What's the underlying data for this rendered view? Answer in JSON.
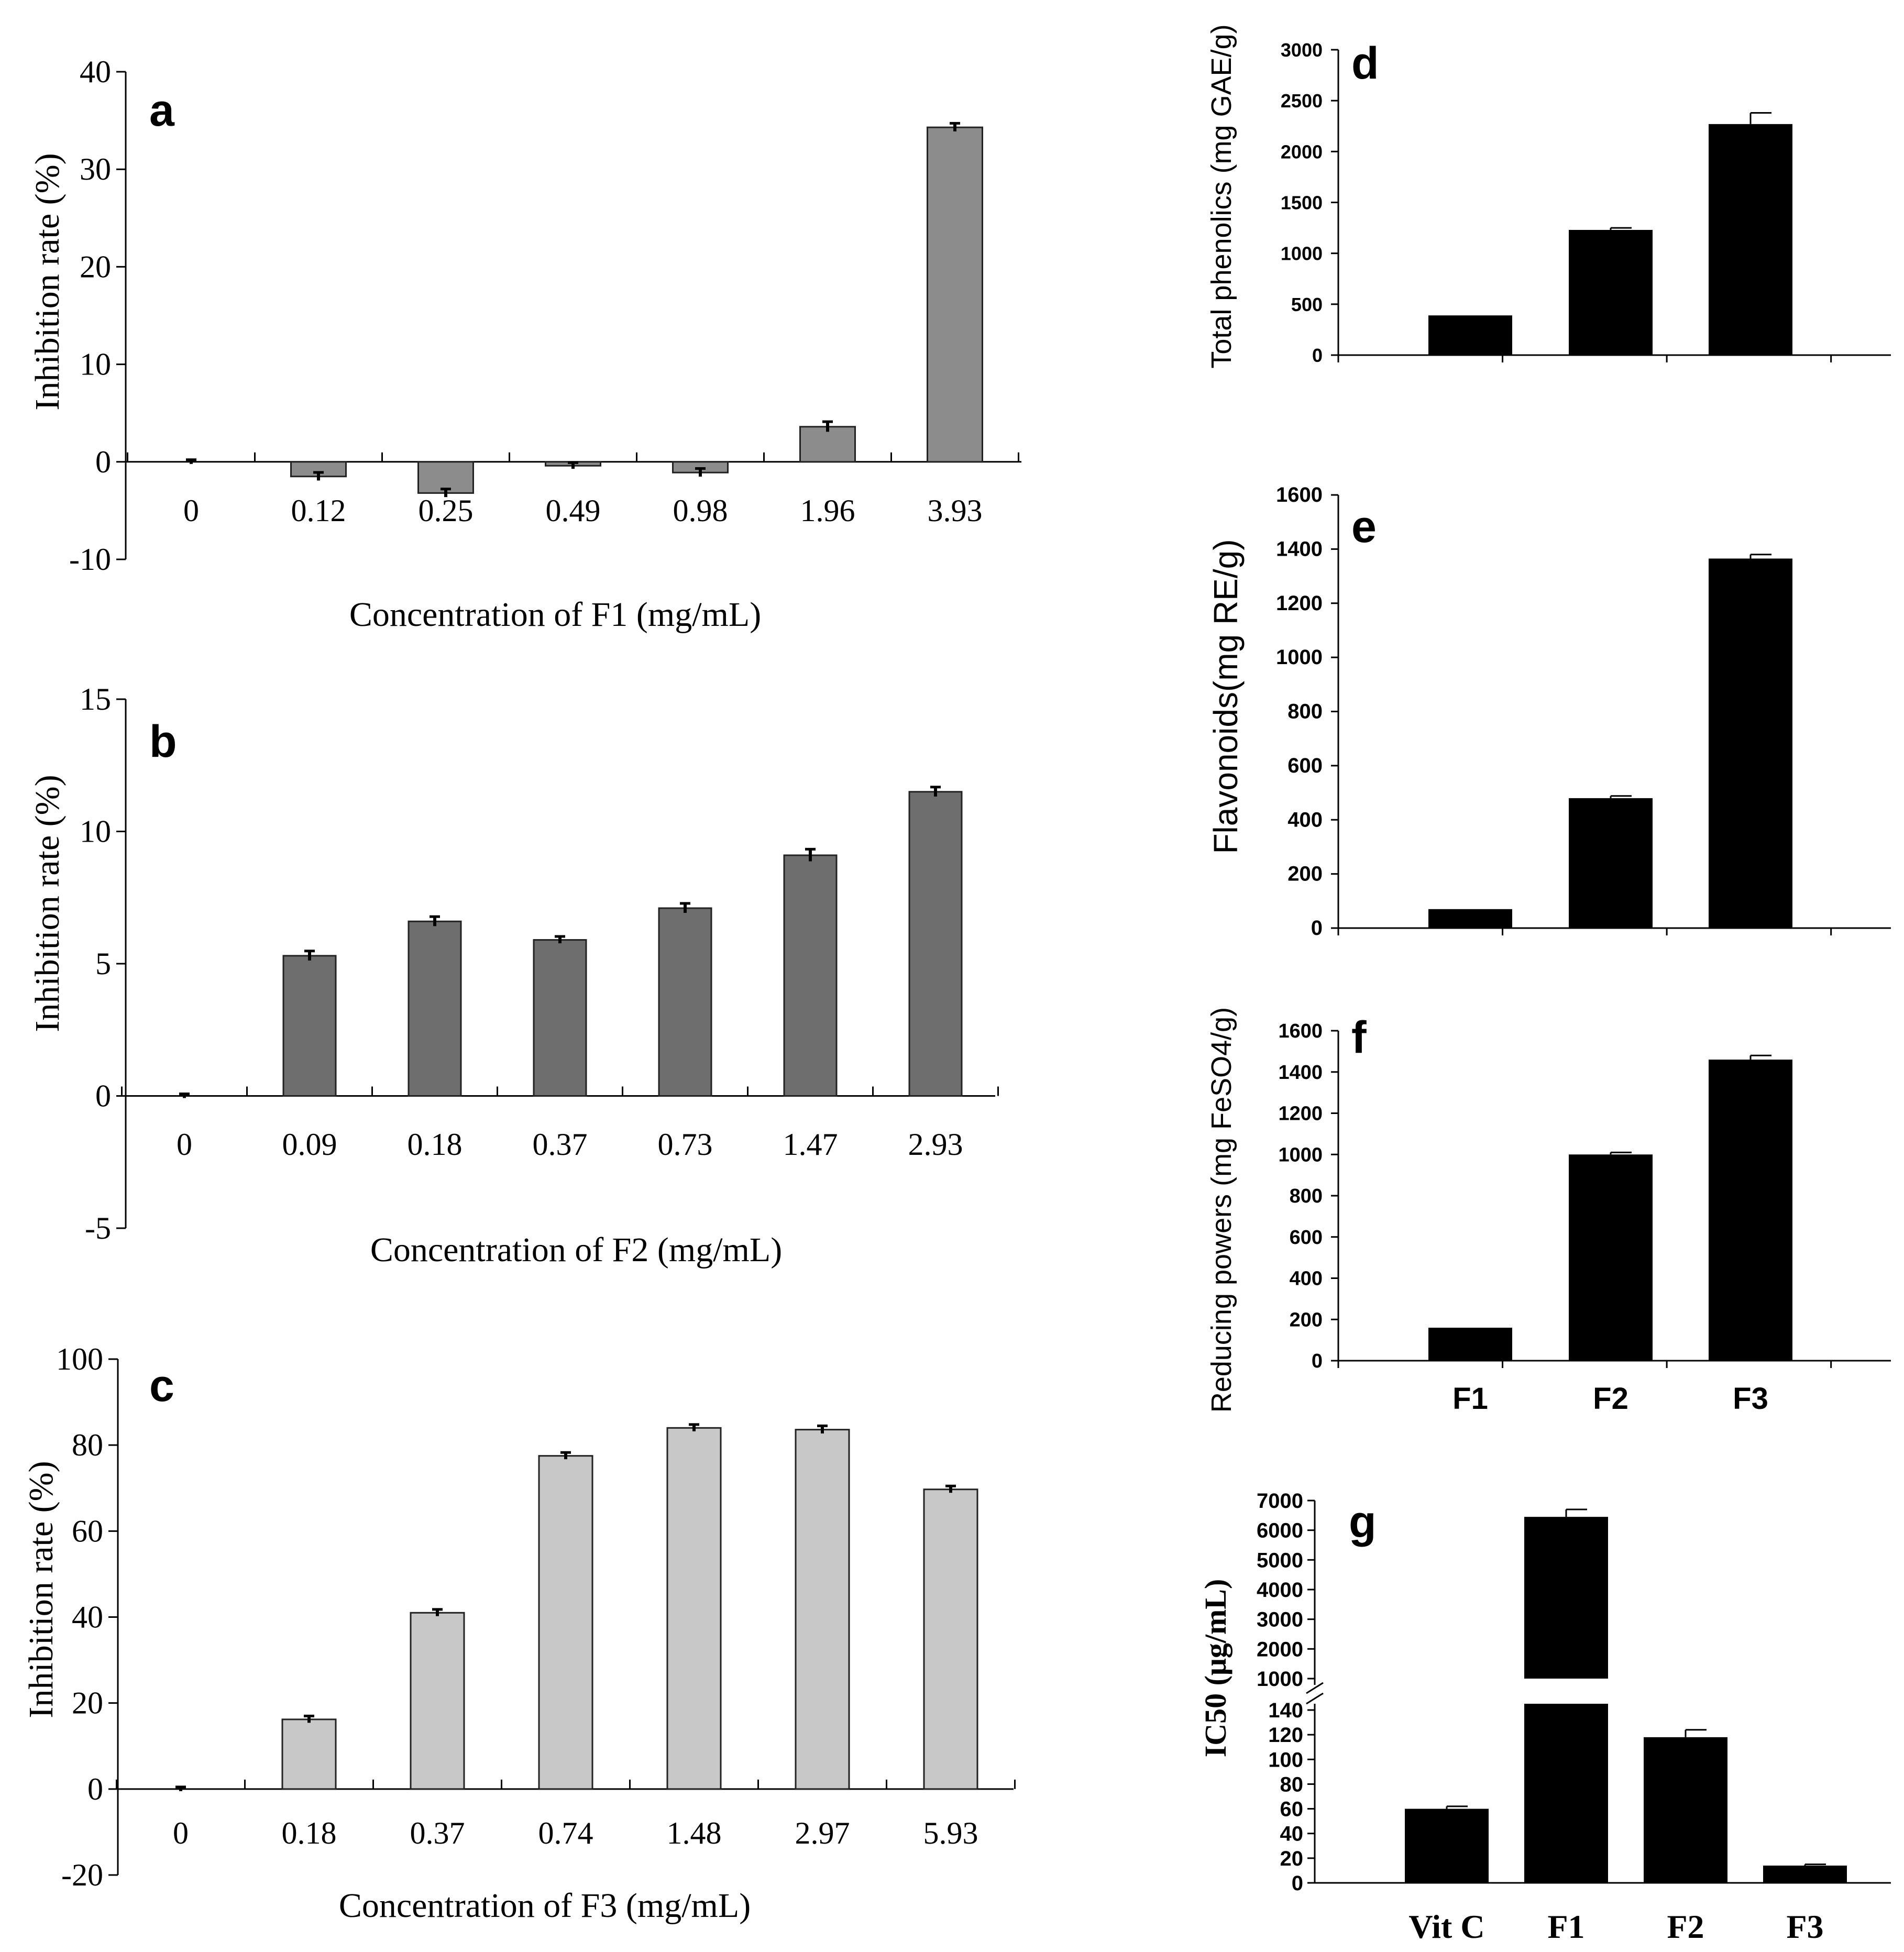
{
  "figure": {
    "background": "#ffffff",
    "panel_colors": {
      "a": "#8c8c8c",
      "b": "#6e6e6e",
      "c": "#c8c8c8",
      "right": "#000000"
    }
  },
  "chart_data": [
    {
      "panel": "a",
      "type": "bar",
      "title": "a",
      "categories": [
        "0",
        "0.12",
        "0.25",
        "0.49",
        "0.98",
        "1.96",
        "3.93"
      ],
      "values": [
        0,
        -1.5,
        -3.2,
        -0.4,
        -1.1,
        3.6,
        34.3
      ],
      "errors": [
        0,
        0.2,
        0.2,
        0.1,
        0.2,
        0.3,
        0.2
      ],
      "xlabel": "Concentration of F1 (mg/mL)",
      "ylabel": "Inhibition rate (%)",
      "ylim": [
        -10,
        40
      ],
      "yticks": [
        -10,
        0,
        10,
        20,
        30,
        40
      ]
    },
    {
      "panel": "b",
      "type": "bar",
      "title": "b",
      "categories": [
        "0",
        "0.09",
        "0.18",
        "0.37",
        "0.73",
        "1.47",
        "2.93"
      ],
      "values": [
        0,
        5.3,
        6.6,
        5.9,
        7.1,
        9.1,
        11.5
      ],
      "errors": [
        0,
        0.1,
        0.1,
        0.05,
        0.1,
        0.15,
        0.1
      ],
      "xlabel": "Concentration of F2 (mg/mL)",
      "ylabel": "Inhibition rate (%)",
      "ylim": [
        -5,
        15
      ],
      "yticks": [
        -5,
        0,
        5,
        10,
        15
      ]
    },
    {
      "panel": "c",
      "type": "bar",
      "title": "c",
      "categories": [
        "0",
        "0.18",
        "0.37",
        "0.74",
        "1.48",
        "2.97",
        "5.93"
      ],
      "values": [
        0,
        16.2,
        41.0,
        77.5,
        84.0,
        83.6,
        69.7
      ],
      "errors": [
        0,
        0.3,
        0.3,
        0.3,
        0.3,
        0.4,
        0.3
      ],
      "xlabel": "Concentration of F3 (mg/mL)",
      "ylabel": "Inhibition rate (%)",
      "ylim": [
        -20,
        100
      ],
      "yticks": [
        -20,
        0,
        20,
        40,
        60,
        80,
        100
      ]
    },
    {
      "panel": "d",
      "type": "bar",
      "title": "d",
      "categories": [
        "F1",
        "F2",
        "F3"
      ],
      "show_category_labels": false,
      "values": [
        390,
        1230,
        2270
      ],
      "errors": [
        0,
        20,
        110
      ],
      "xlabel": "",
      "ylabel": "Total phenolics (mg GAE/g)",
      "ylim": [
        0,
        3000
      ],
      "yticks": [
        0,
        500,
        1000,
        1500,
        2000,
        2500,
        3000
      ]
    },
    {
      "panel": "e",
      "type": "bar",
      "title": "e",
      "categories": [
        "F1",
        "F2",
        "F3"
      ],
      "show_category_labels": false,
      "values": [
        70,
        480,
        1365
      ],
      "errors": [
        0,
        8,
        15
      ],
      "xlabel": "",
      "ylabel": "Flavonoids(mg RE/g)",
      "ylim": [
        0,
        1600
      ],
      "yticks": [
        0,
        200,
        400,
        600,
        800,
        1000,
        1200,
        1400,
        1600
      ]
    },
    {
      "panel": "f",
      "type": "bar",
      "title": "f",
      "categories": [
        "F1",
        "F2",
        "F3"
      ],
      "show_category_labels": true,
      "values": [
        160,
        1000,
        1460
      ],
      "errors": [
        0,
        10,
        20
      ],
      "xlabel": "",
      "ylabel": "Reducing powers (mg FeSO4/g)",
      "ylim": [
        0,
        1600
      ],
      "yticks": [
        0,
        200,
        400,
        600,
        800,
        1000,
        1200,
        1400,
        1600
      ]
    },
    {
      "panel": "g",
      "type": "bar",
      "title": "g",
      "categories": [
        "Vit C",
        "F1",
        "F2",
        "F3"
      ],
      "show_category_labels": true,
      "values": [
        60,
        6450,
        118,
        14
      ],
      "errors": [
        2,
        250,
        6,
        1
      ],
      "xlabel": "",
      "ylabel": "IC50 (μg/mL)",
      "axis_break": true,
      "ylim_lower": [
        0,
        140
      ],
      "ylim_upper": [
        1000,
        7000
      ],
      "yticks_lower": [
        0,
        20,
        40,
        60,
        80,
        100,
        120,
        140
      ],
      "yticks_upper": [
        1000,
        2000,
        3000,
        4000,
        5000,
        6000,
        7000
      ]
    }
  ]
}
